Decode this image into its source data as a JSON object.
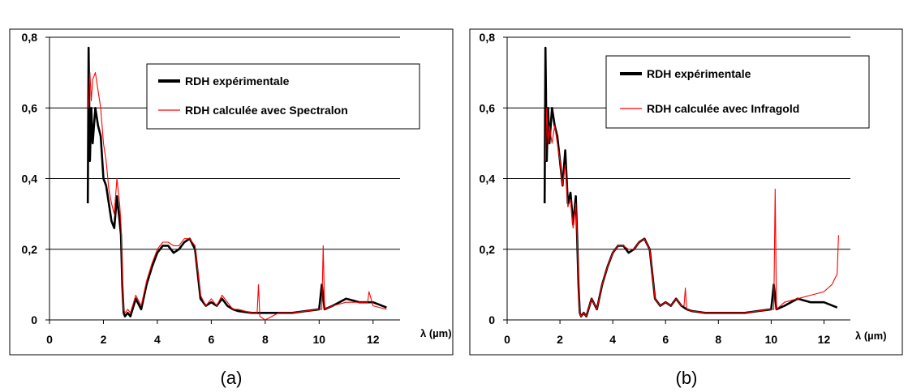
{
  "chart_data": [
    {
      "type": "line",
      "caption": "(a)",
      "xlabel": "λ (µm)",
      "ylabel": "",
      "xlim": [
        0,
        13
      ],
      "ylim": [
        0,
        0.8
      ],
      "xticks": [
        "0",
        "2",
        "4",
        "6",
        "8",
        "10",
        "12"
      ],
      "yticks": [
        "0",
        "0,2",
        "0,4",
        "0,6",
        "0,8"
      ],
      "grid": "horizontal",
      "legend": "top-right",
      "series": [
        {
          "name": "RDH expérimentale",
          "color": "#000000",
          "x": [
            1.42,
            1.45,
            1.5,
            1.55,
            1.6,
            1.7,
            1.8,
            1.9,
            2.0,
            2.1,
            2.2,
            2.3,
            2.4,
            2.5,
            2.6,
            2.65,
            2.7,
            2.75,
            2.8,
            2.9,
            3.0,
            3.2,
            3.4,
            3.6,
            3.8,
            4.0,
            4.2,
            4.4,
            4.6,
            4.8,
            5.0,
            5.2,
            5.4,
            5.6,
            5.8,
            6.0,
            6.2,
            6.4,
            6.6,
            6.8,
            7.0,
            7.5,
            8.0,
            8.5,
            9.0,
            9.5,
            10.0,
            10.1,
            10.2,
            10.5,
            11.0,
            11.5,
            12.0,
            12.5
          ],
          "values": [
            0.33,
            0.77,
            0.45,
            0.6,
            0.5,
            0.6,
            0.55,
            0.52,
            0.4,
            0.38,
            0.33,
            0.28,
            0.26,
            0.35,
            0.28,
            0.24,
            0.1,
            0.02,
            0.01,
            0.02,
            0.01,
            0.06,
            0.03,
            0.1,
            0.15,
            0.19,
            0.21,
            0.21,
            0.19,
            0.2,
            0.22,
            0.23,
            0.2,
            0.06,
            0.04,
            0.05,
            0.04,
            0.06,
            0.04,
            0.03,
            0.025,
            0.02,
            0.02,
            0.02,
            0.02,
            0.025,
            0.03,
            0.1,
            0.03,
            0.04,
            0.06,
            0.05,
            0.05,
            0.035
          ]
        },
        {
          "name": "RDH calculée avec Spectralon",
          "color": "#ff0000",
          "x": [
            1.45,
            1.5,
            1.55,
            1.6,
            1.7,
            1.8,
            1.9,
            2.0,
            2.1,
            2.2,
            2.3,
            2.4,
            2.5,
            2.6,
            2.65,
            2.7,
            2.75,
            2.8,
            2.9,
            3.0,
            3.2,
            3.4,
            3.6,
            3.8,
            4.0,
            4.2,
            4.4,
            4.6,
            4.8,
            5.0,
            5.2,
            5.4,
            5.6,
            5.8,
            6.0,
            6.2,
            6.4,
            6.6,
            6.8,
            7.0,
            7.5,
            7.7,
            7.75,
            7.8,
            8.0,
            8.5,
            9.0,
            9.5,
            10.0,
            10.1,
            10.15,
            10.2,
            10.5,
            11.0,
            11.5,
            11.8,
            11.85,
            12.0,
            12.5
          ],
          "values": [
            0.6,
            0.7,
            0.62,
            0.68,
            0.7,
            0.65,
            0.6,
            0.5,
            0.45,
            0.37,
            0.33,
            0.3,
            0.4,
            0.33,
            0.27,
            0.12,
            0.03,
            0.02,
            0.03,
            0.02,
            0.07,
            0.04,
            0.11,
            0.16,
            0.2,
            0.22,
            0.22,
            0.21,
            0.21,
            0.23,
            0.23,
            0.21,
            0.07,
            0.04,
            0.06,
            0.04,
            0.07,
            0.05,
            0.03,
            0.03,
            0.02,
            0.02,
            0.1,
            0.01,
            0.0,
            0.02,
            0.02,
            0.025,
            0.03,
            0.03,
            0.21,
            0.03,
            0.04,
            0.05,
            0.05,
            0.05,
            0.08,
            0.04,
            0.03
          ]
        }
      ]
    },
    {
      "type": "line",
      "caption": "(b)",
      "xlabel": "λ (µm)",
      "ylabel": "",
      "xlim": [
        0,
        13
      ],
      "ylim": [
        0,
        0.8
      ],
      "xticks": [
        "0",
        "2",
        "4",
        "6",
        "8",
        "10",
        "12"
      ],
      "yticks": [
        "0",
        "0,2",
        "0,4",
        "0,6",
        "0,8"
      ],
      "grid": "horizontal",
      "legend": "top-right",
      "series": [
        {
          "name": "RDH expérimentale",
          "color": "#000000",
          "x": [
            1.42,
            1.45,
            1.5,
            1.55,
            1.6,
            1.7,
            1.8,
            1.9,
            2.0,
            2.1,
            2.2,
            2.3,
            2.4,
            2.5,
            2.6,
            2.65,
            2.7,
            2.75,
            2.8,
            2.9,
            3.0,
            3.2,
            3.4,
            3.6,
            3.8,
            4.0,
            4.2,
            4.4,
            4.6,
            4.8,
            5.0,
            5.2,
            5.4,
            5.6,
            5.8,
            6.0,
            6.2,
            6.4,
            6.6,
            6.8,
            7.0,
            7.5,
            8.0,
            8.5,
            9.0,
            9.5,
            10.0,
            10.1,
            10.2,
            10.5,
            11.0,
            11.5,
            12.0,
            12.5
          ],
          "values": [
            0.33,
            0.77,
            0.45,
            0.6,
            0.5,
            0.6,
            0.55,
            0.52,
            0.45,
            0.38,
            0.48,
            0.33,
            0.36,
            0.27,
            0.35,
            0.24,
            0.1,
            0.02,
            0.01,
            0.02,
            0.01,
            0.06,
            0.03,
            0.1,
            0.15,
            0.19,
            0.21,
            0.21,
            0.19,
            0.2,
            0.22,
            0.23,
            0.2,
            0.06,
            0.04,
            0.05,
            0.04,
            0.06,
            0.04,
            0.03,
            0.025,
            0.02,
            0.02,
            0.02,
            0.02,
            0.025,
            0.03,
            0.1,
            0.03,
            0.04,
            0.06,
            0.05,
            0.05,
            0.035
          ]
        },
        {
          "name": "RDH calculée avec Infragold",
          "color": "#ff0000",
          "x": [
            1.45,
            1.5,
            1.55,
            1.6,
            1.7,
            1.8,
            1.9,
            2.0,
            2.1,
            2.2,
            2.3,
            2.4,
            2.5,
            2.6,
            2.65,
            2.7,
            2.75,
            2.8,
            2.9,
            3.0,
            3.2,
            3.4,
            3.6,
            3.8,
            4.0,
            4.2,
            4.4,
            4.6,
            4.8,
            5.0,
            5.2,
            5.4,
            5.6,
            5.8,
            6.0,
            6.2,
            6.4,
            6.6,
            6.7,
            6.75,
            6.8,
            7.0,
            7.5,
            8.0,
            8.5,
            9.0,
            9.5,
            10.0,
            10.1,
            10.15,
            10.2,
            10.5,
            11.0,
            11.5,
            12.0,
            12.3,
            12.5,
            12.55
          ],
          "values": [
            0.45,
            0.6,
            0.5,
            0.55,
            0.5,
            0.55,
            0.5,
            0.45,
            0.38,
            0.44,
            0.32,
            0.34,
            0.26,
            0.33,
            0.24,
            0.1,
            0.02,
            0.01,
            0.02,
            0.01,
            0.06,
            0.03,
            0.1,
            0.15,
            0.19,
            0.21,
            0.21,
            0.2,
            0.2,
            0.22,
            0.23,
            0.2,
            0.06,
            0.04,
            0.05,
            0.04,
            0.06,
            0.04,
            0.04,
            0.09,
            0.03,
            0.025,
            0.02,
            0.02,
            0.02,
            0.02,
            0.025,
            0.03,
            0.03,
            0.37,
            0.03,
            0.05,
            0.06,
            0.07,
            0.08,
            0.1,
            0.13,
            0.24
          ]
        }
      ]
    }
  ]
}
